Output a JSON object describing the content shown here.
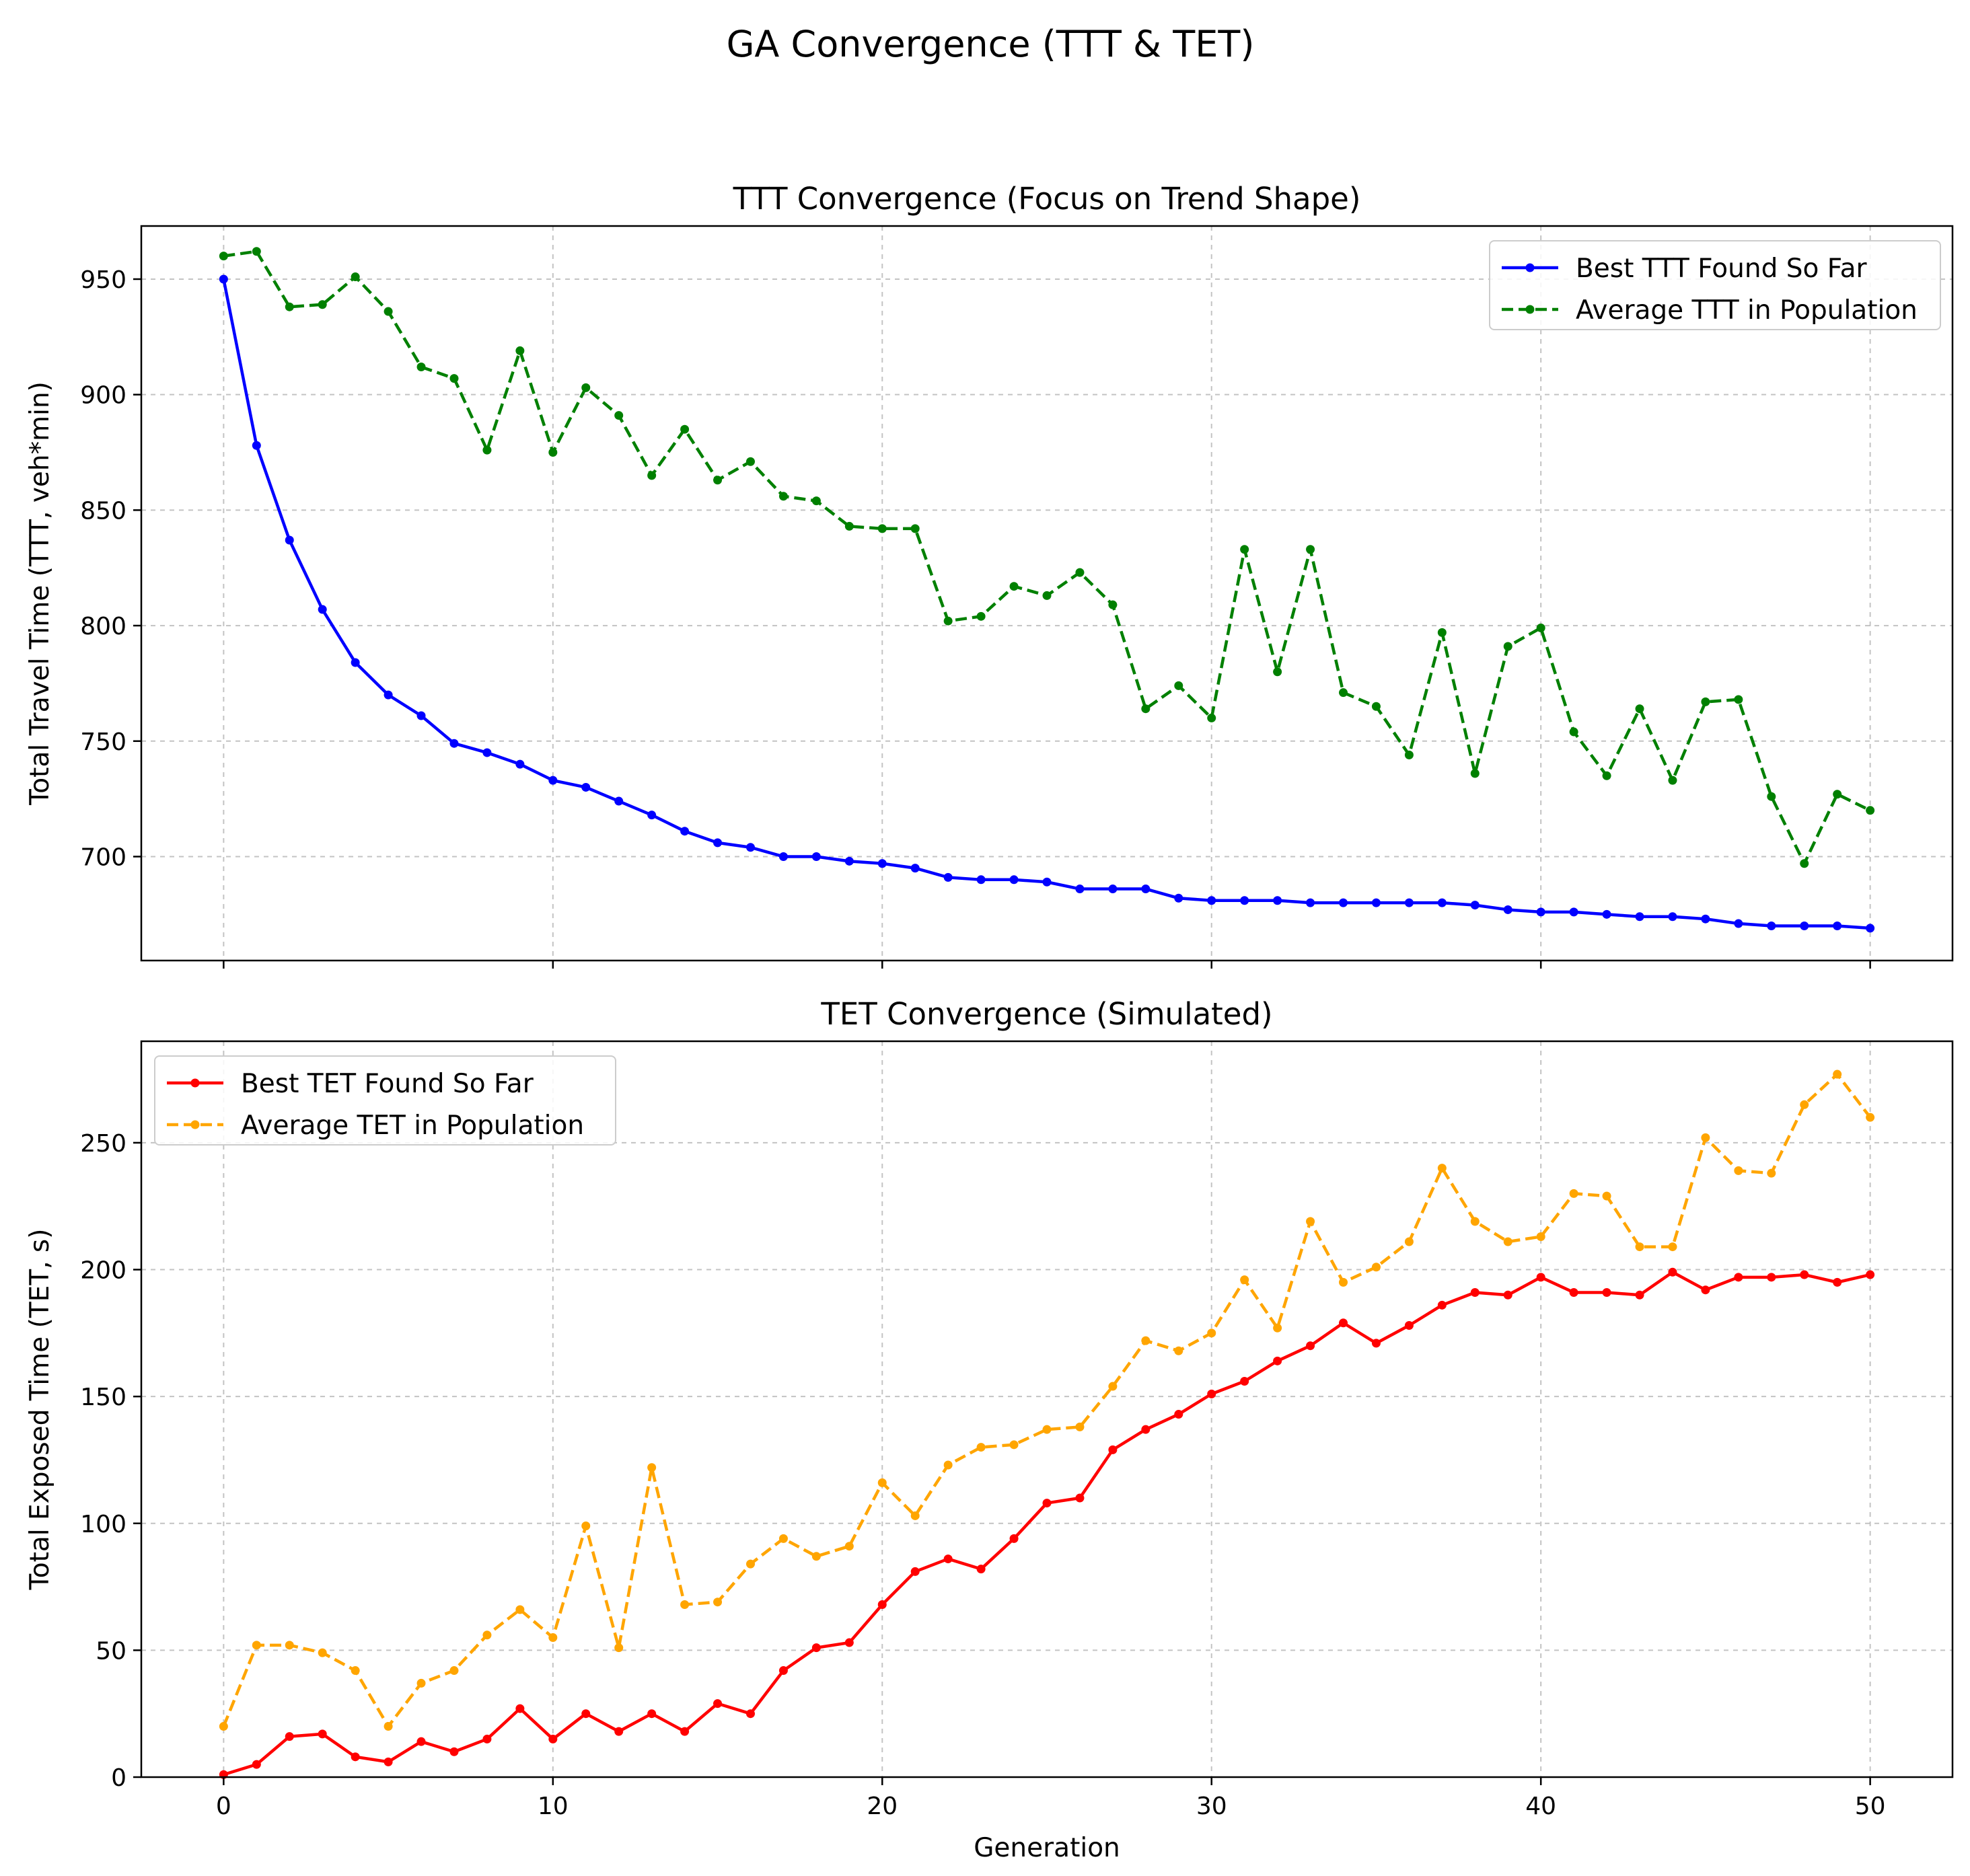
{
  "figure_title": "GA Convergence (TTT & TET)",
  "chart_data": [
    {
      "type": "line",
      "title": "TTT Convergence (Focus on Trend Shape)",
      "xlabel": "",
      "ylabel": "Total Travel Time (TTT, veh*min)",
      "xlim": [
        -2.5,
        52.5
      ],
      "ylim": [
        655,
        973
      ],
      "xticks": [
        0,
        10,
        20,
        30,
        40,
        50
      ],
      "yticks": [
        700,
        750,
        800,
        850,
        900,
        950
      ],
      "show_xtick_labels": false,
      "grid": true,
      "legend_loc": "upper right",
      "series": [
        {
          "name": "Best TTT Found So Far",
          "color": "#0000ff",
          "dash": "solid",
          "values": [
            950,
            878,
            837,
            807,
            784,
            770,
            761,
            749,
            745,
            740,
            733,
            730,
            724,
            718,
            711,
            706,
            704,
            700,
            700,
            698,
            697,
            695,
            691,
            690,
            690,
            689,
            686,
            686,
            686,
            682,
            681,
            681,
            681,
            680,
            680,
            680,
            680,
            680,
            679,
            677,
            676,
            676,
            675,
            674,
            674,
            673,
            671,
            670,
            670,
            670,
            669
          ]
        },
        {
          "name": "Average TTT in Population",
          "color": "#008000",
          "dash": "dashed",
          "values": [
            960,
            962,
            938,
            939,
            951,
            936,
            912,
            907,
            876,
            919,
            875,
            903,
            891,
            865,
            885,
            863,
            871,
            856,
            854,
            843,
            842,
            842,
            802,
            804,
            817,
            813,
            823,
            809,
            764,
            774,
            760,
            833,
            780,
            833,
            771,
            765,
            744,
            797,
            736,
            791,
            799,
            754,
            735,
            764,
            733,
            767,
            768,
            726,
            697,
            727,
            720
          ]
        }
      ]
    },
    {
      "type": "line",
      "title": "TET Convergence (Simulated)",
      "xlabel": "Generation",
      "ylabel": "Total Exposed Time (TET, s)",
      "xlim": [
        -2.5,
        52.5
      ],
      "ylim": [
        0,
        290
      ],
      "xticks": [
        0,
        10,
        20,
        30,
        40,
        50
      ],
      "yticks": [
        0,
        50,
        100,
        150,
        200,
        250
      ],
      "show_xtick_labels": true,
      "grid": true,
      "legend_loc": "upper left",
      "series": [
        {
          "name": "Best TET Found So Far",
          "color": "#ff0000",
          "dash": "solid",
          "values": [
            1,
            5,
            16,
            17,
            8,
            6,
            14,
            10,
            15,
            27,
            15,
            25,
            18,
            25,
            18,
            29,
            25,
            42,
            51,
            53,
            68,
            81,
            86,
            82,
            94,
            108,
            110,
            129,
            137,
            143,
            151,
            156,
            164,
            170,
            179,
            171,
            178,
            186,
            191,
            190,
            197,
            191,
            191,
            190,
            199,
            192,
            197,
            197,
            198,
            195,
            198
          ]
        },
        {
          "name": "Average TET in Population",
          "color": "#ffa500",
          "dash": "dashed",
          "values": [
            20,
            52,
            52,
            49,
            42,
            20,
            37,
            42,
            56,
            66,
            55,
            99,
            51,
            122,
            68,
            69,
            84,
            94,
            87,
            91,
            116,
            103,
            123,
            130,
            131,
            137,
            138,
            154,
            172,
            168,
            175,
            196,
            177,
            219,
            195,
            201,
            211,
            240,
            219,
            211,
            213,
            230,
            229,
            209,
            209,
            252,
            239,
            238,
            265,
            277,
            260
          ]
        }
      ]
    }
  ]
}
